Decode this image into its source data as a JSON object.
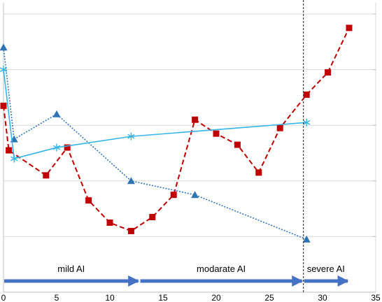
{
  "chart_data": {
    "type": "line",
    "title": "",
    "xlabel": "",
    "ylabel": "",
    "xlim": [
      0,
      35
    ],
    "x_ticks": [
      "0",
      "5",
      "10",
      "15",
      "20",
      "25",
      "30",
      "35"
    ],
    "grid": "horizontal",
    "series": [
      {
        "marker": "square",
        "style": "dashed",
        "color": "#c00000",
        "points": [
          [
            0,
            0.67
          ],
          [
            0.5,
            0.51
          ],
          [
            4,
            0.42
          ],
          [
            6,
            0.52
          ],
          [
            8,
            0.33
          ],
          [
            10,
            0.25
          ],
          [
            12,
            0.22
          ],
          [
            14,
            0.27
          ],
          [
            16,
            0.35
          ],
          [
            18,
            0.62
          ],
          [
            20,
            0.57
          ],
          [
            22,
            0.53
          ],
          [
            24,
            0.43
          ],
          [
            26,
            0.59
          ],
          [
            28.5,
            0.71
          ],
          [
            30.5,
            0.79
          ],
          [
            32.5,
            0.95
          ]
        ]
      },
      {
        "marker": "triangle",
        "style": "dotted",
        "color": "#2e75b6",
        "points": [
          [
            0,
            0.88
          ],
          [
            1,
            0.55
          ],
          [
            5,
            0.64
          ],
          [
            12,
            0.4
          ],
          [
            18,
            0.35
          ],
          [
            28.5,
            0.19
          ]
        ]
      },
      {
        "marker": "asterisk",
        "style": "solid",
        "color": "#33b5e5",
        "points": [
          [
            0,
            0.8
          ],
          [
            1,
            0.48
          ],
          [
            5,
            0.52
          ],
          [
            12,
            0.56
          ],
          [
            28.5,
            0.61
          ]
        ]
      }
    ],
    "vertical_line": {
      "x": 28.2,
      "style": "dashed"
    },
    "annotations": [
      {
        "label": "mild AI",
        "from": 0,
        "to": 12.8
      },
      {
        "label": "modarate AI",
        "from": 12.8,
        "to": 28.2
      },
      {
        "label": "severe AI",
        "from": 28.2,
        "to": 32.5
      }
    ]
  }
}
